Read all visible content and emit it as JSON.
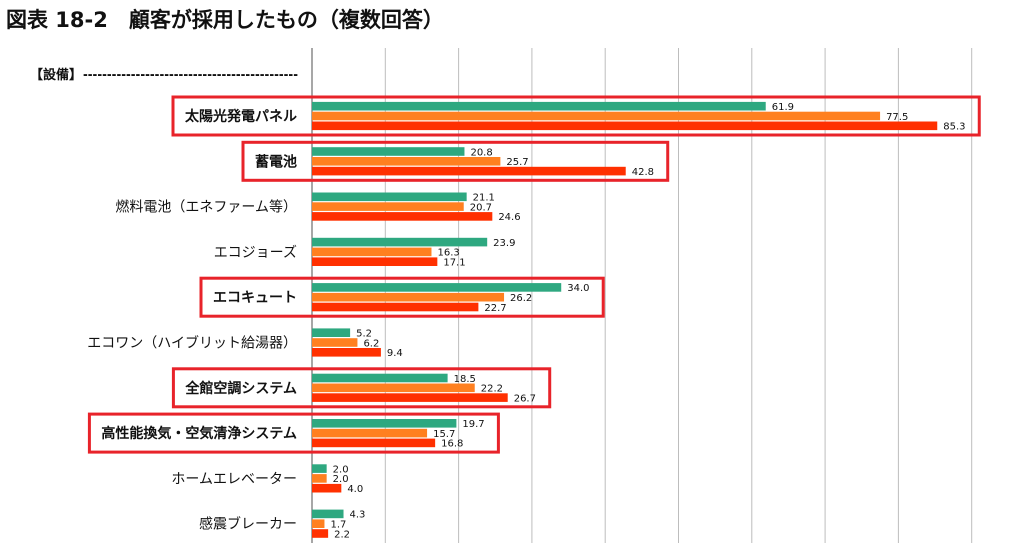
{
  "chart_data": {
    "type": "bar",
    "orientation": "horizontal",
    "title": "図表 18-2　顧客が採用したもの（複数回答）",
    "section_label": "【設備】",
    "section_dashes": "---------------------------------------------",
    "categories": [
      "太陽光発電パネル",
      "蓄電池",
      "燃料電池（エネファーム等）",
      "エコジョーズ",
      "エコキュート",
      "エコワン（ハイブリット給湯器）",
      "全館空調システム",
      "高性能換気・空気清浄システム",
      "ホームエレベーター",
      "感震ブレーカー"
    ],
    "highlighted": [
      true,
      true,
      false,
      false,
      true,
      false,
      true,
      true,
      false,
      false
    ],
    "series": [
      {
        "color": "#2ea880",
        "values": [
          61.9,
          20.8,
          21.1,
          23.9,
          34.0,
          5.2,
          18.5,
          19.7,
          2.0,
          4.3
        ]
      },
      {
        "color": "#ff8020",
        "values": [
          77.5,
          25.7,
          20.7,
          16.3,
          26.2,
          6.2,
          22.2,
          15.7,
          2.0,
          1.7
        ]
      },
      {
        "color": "#ff3000",
        "values": [
          85.3,
          42.8,
          24.6,
          17.1,
          22.7,
          9.4,
          26.7,
          16.8,
          4.0,
          2.2
        ]
      }
    ],
    "xlim": [
      0,
      90
    ],
    "grid": true,
    "grid_step": 10,
    "highlight_color": "#e8232a"
  }
}
